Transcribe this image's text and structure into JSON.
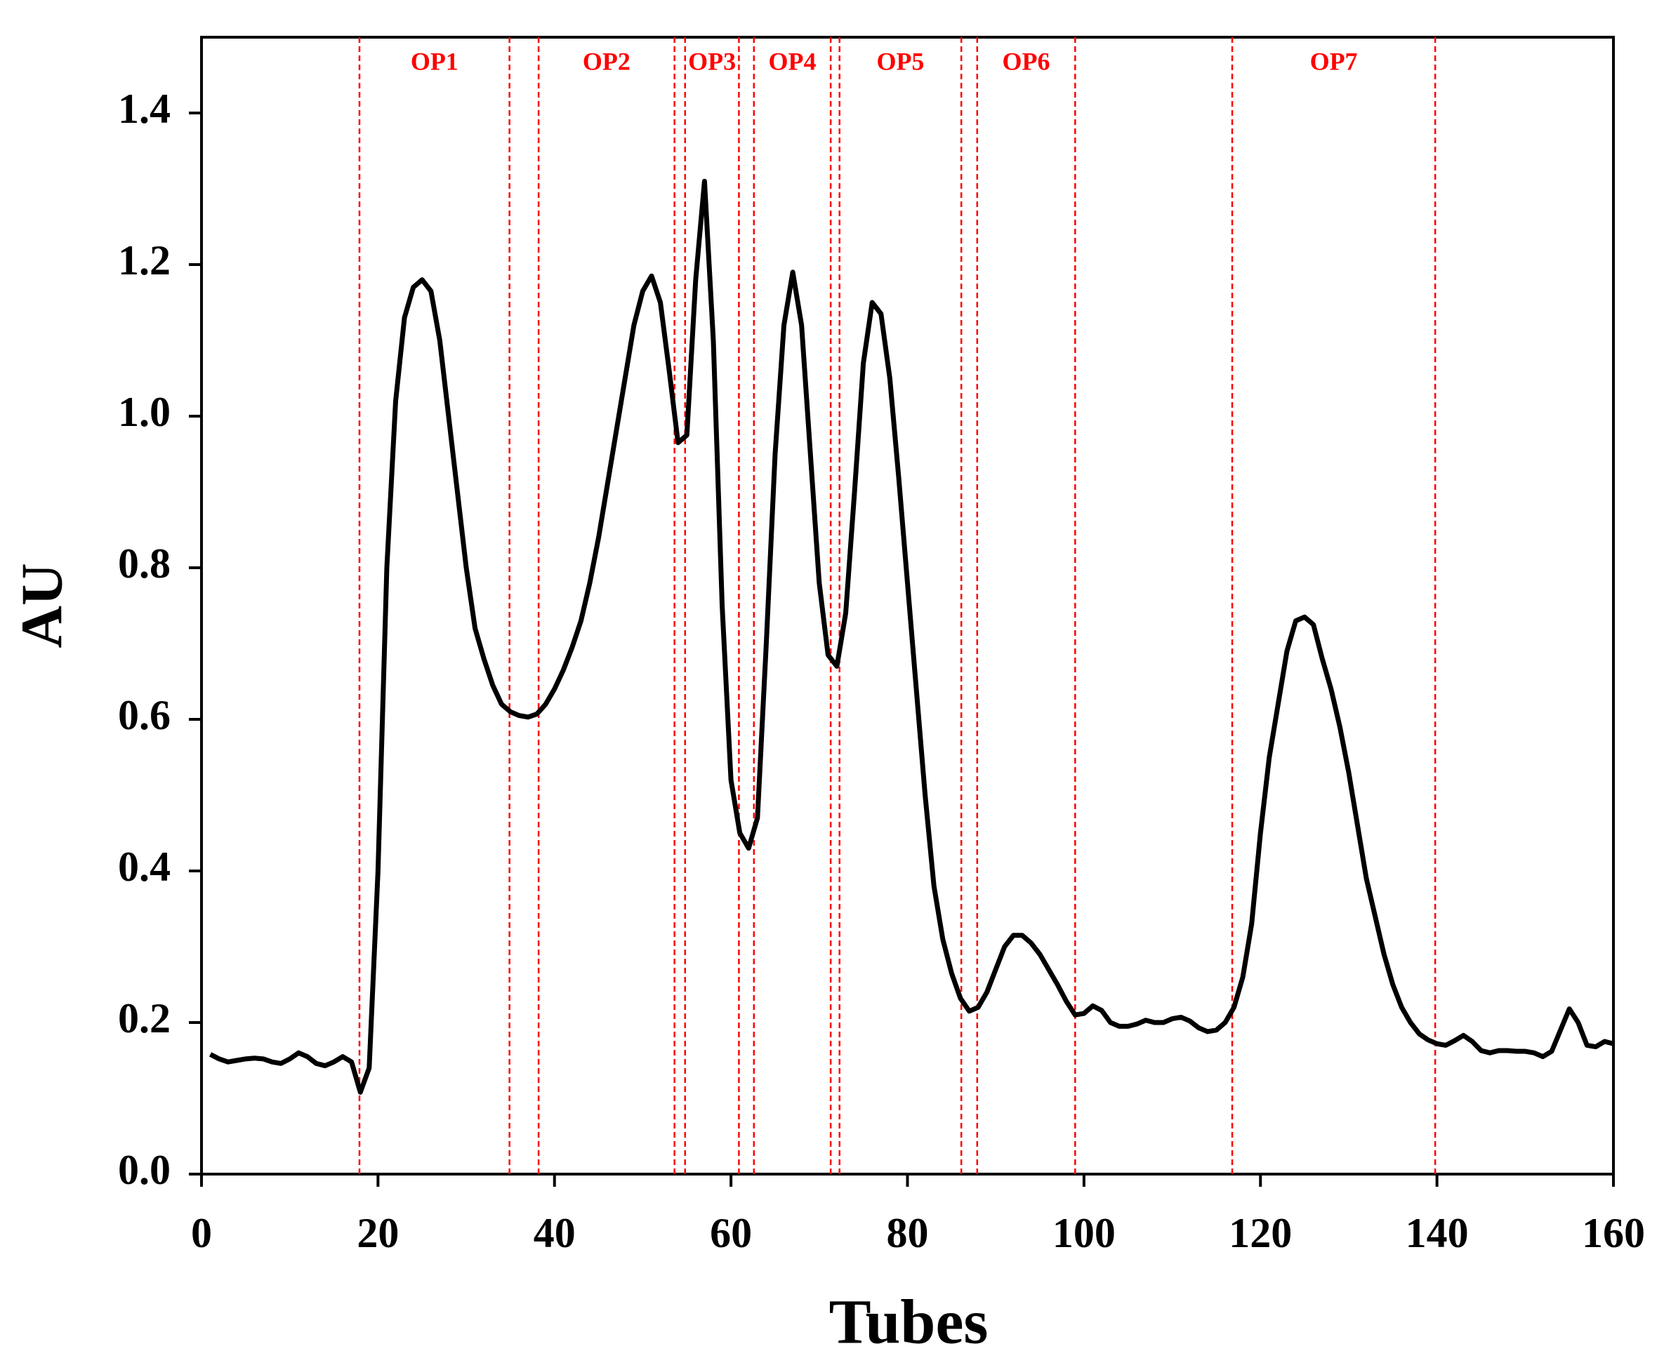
{
  "chart_data": {
    "type": "line",
    "xlabel": "Tubes",
    "ylabel": "AU",
    "xlim": [
      0,
      160
    ],
    "xticks": [
      0,
      20,
      40,
      60,
      80,
      100,
      120,
      140,
      160
    ],
    "ylim": [
      0,
      1.5
    ],
    "yticks": [
      {
        "value": 0,
        "label": "0.0"
      },
      0.2,
      0.4,
      0.6,
      0.8,
      {
        "value": 1,
        "label": "1.0"
      },
      1.2,
      1.4
    ],
    "grid": false,
    "series": [
      {
        "color": "#000000",
        "x": [
          1,
          2,
          3,
          4,
          5,
          6,
          7,
          8,
          9,
          10,
          11,
          12,
          13,
          14,
          15,
          16,
          17,
          18,
          19,
          20,
          21,
          22,
          23,
          24,
          25,
          26,
          27,
          28,
          29,
          30,
          31,
          32,
          33,
          34,
          35,
          36,
          37,
          38,
          39,
          40,
          41,
          42,
          43,
          44,
          45,
          46,
          47,
          48,
          49,
          50,
          51,
          52,
          53,
          54,
          55,
          56,
          57,
          58,
          59,
          60,
          61,
          62,
          63,
          64,
          65,
          66,
          67,
          68,
          69,
          70,
          71,
          72,
          73,
          74,
          75,
          76,
          77,
          78,
          79,
          80,
          81,
          82,
          83,
          84,
          85,
          86,
          87,
          88,
          89,
          90,
          91,
          92,
          93,
          94,
          95,
          96,
          97,
          98,
          99,
          100,
          101,
          102,
          103,
          104,
          105,
          106,
          107,
          108,
          109,
          110,
          111,
          112,
          113,
          114,
          115,
          116,
          117,
          118,
          119,
          120,
          121,
          122,
          123,
          124,
          125,
          126,
          127,
          128,
          129,
          130,
          131,
          132,
          133,
          134,
          135,
          136,
          137,
          138,
          139,
          140,
          141,
          142,
          143,
          144,
          145,
          146,
          147,
          148,
          149,
          150,
          151,
          152,
          153,
          154,
          155,
          156,
          157,
          158,
          159,
          160
        ],
        "values": [
          0.158,
          0.152,
          0.148,
          0.15,
          0.152,
          0.153,
          0.152,
          0.148,
          0.146,
          0.152,
          0.16,
          0.155,
          0.146,
          0.143,
          0.148,
          0.155,
          0.148,
          0.108,
          0.14,
          0.4,
          0.8,
          1.02,
          1.13,
          1.17,
          1.18,
          1.165,
          1.1,
          1.0,
          0.9,
          0.8,
          0.72,
          0.68,
          0.645,
          0.62,
          0.61,
          0.605,
          0.603,
          0.607,
          0.62,
          0.64,
          0.665,
          0.695,
          0.73,
          0.78,
          0.84,
          0.91,
          0.98,
          1.05,
          1.12,
          1.165,
          1.185,
          1.15,
          1.06,
          0.965,
          0.975,
          1.18,
          1.31,
          1.1,
          0.75,
          0.52,
          0.45,
          0.43,
          0.47,
          0.7,
          0.95,
          1.12,
          1.19,
          1.12,
          0.95,
          0.78,
          0.685,
          0.67,
          0.74,
          0.9,
          1.07,
          1.15,
          1.135,
          1.05,
          0.92,
          0.78,
          0.64,
          0.5,
          0.38,
          0.31,
          0.265,
          0.232,
          0.215,
          0.22,
          0.24,
          0.27,
          0.3,
          0.315,
          0.315,
          0.305,
          0.29,
          0.27,
          0.25,
          0.228,
          0.21,
          0.212,
          0.222,
          0.216,
          0.2,
          0.195,
          0.195,
          0.198,
          0.203,
          0.2,
          0.2,
          0.205,
          0.207,
          0.202,
          0.193,
          0.188,
          0.19,
          0.2,
          0.22,
          0.26,
          0.33,
          0.45,
          0.55,
          0.62,
          0.69,
          0.73,
          0.735,
          0.725,
          0.68,
          0.64,
          0.59,
          0.53,
          0.46,
          0.39,
          0.34,
          0.29,
          0.25,
          0.22,
          0.2,
          0.185,
          0.177,
          0.172,
          0.17,
          0.176,
          0.183,
          0.175,
          0.163,
          0.16,
          0.163,
          0.163,
          0.162,
          0.162,
          0.16,
          0.155,
          0.162,
          0.19,
          0.218,
          0.2,
          0.17,
          0.168,
          0.175,
          0.172
        ]
      }
    ],
    "regions": [
      {
        "label": "OP1",
        "start": 17.9,
        "end": 34.9
      },
      {
        "label": "OP2",
        "start": 38.2,
        "end": 53.6
      },
      {
        "label": "OP3",
        "start": 54.8,
        "end": 60.9
      },
      {
        "label": "OP4",
        "start": 62.6,
        "end": 71.3
      },
      {
        "label": "OP5",
        "start": 72.3,
        "end": 86.1
      },
      {
        "label": "OP6",
        "start": 87.9,
        "end": 99.0
      },
      {
        "label": "OP7",
        "start": 116.8,
        "end": 139.8
      }
    ],
    "region_color": "#ff0000"
  }
}
